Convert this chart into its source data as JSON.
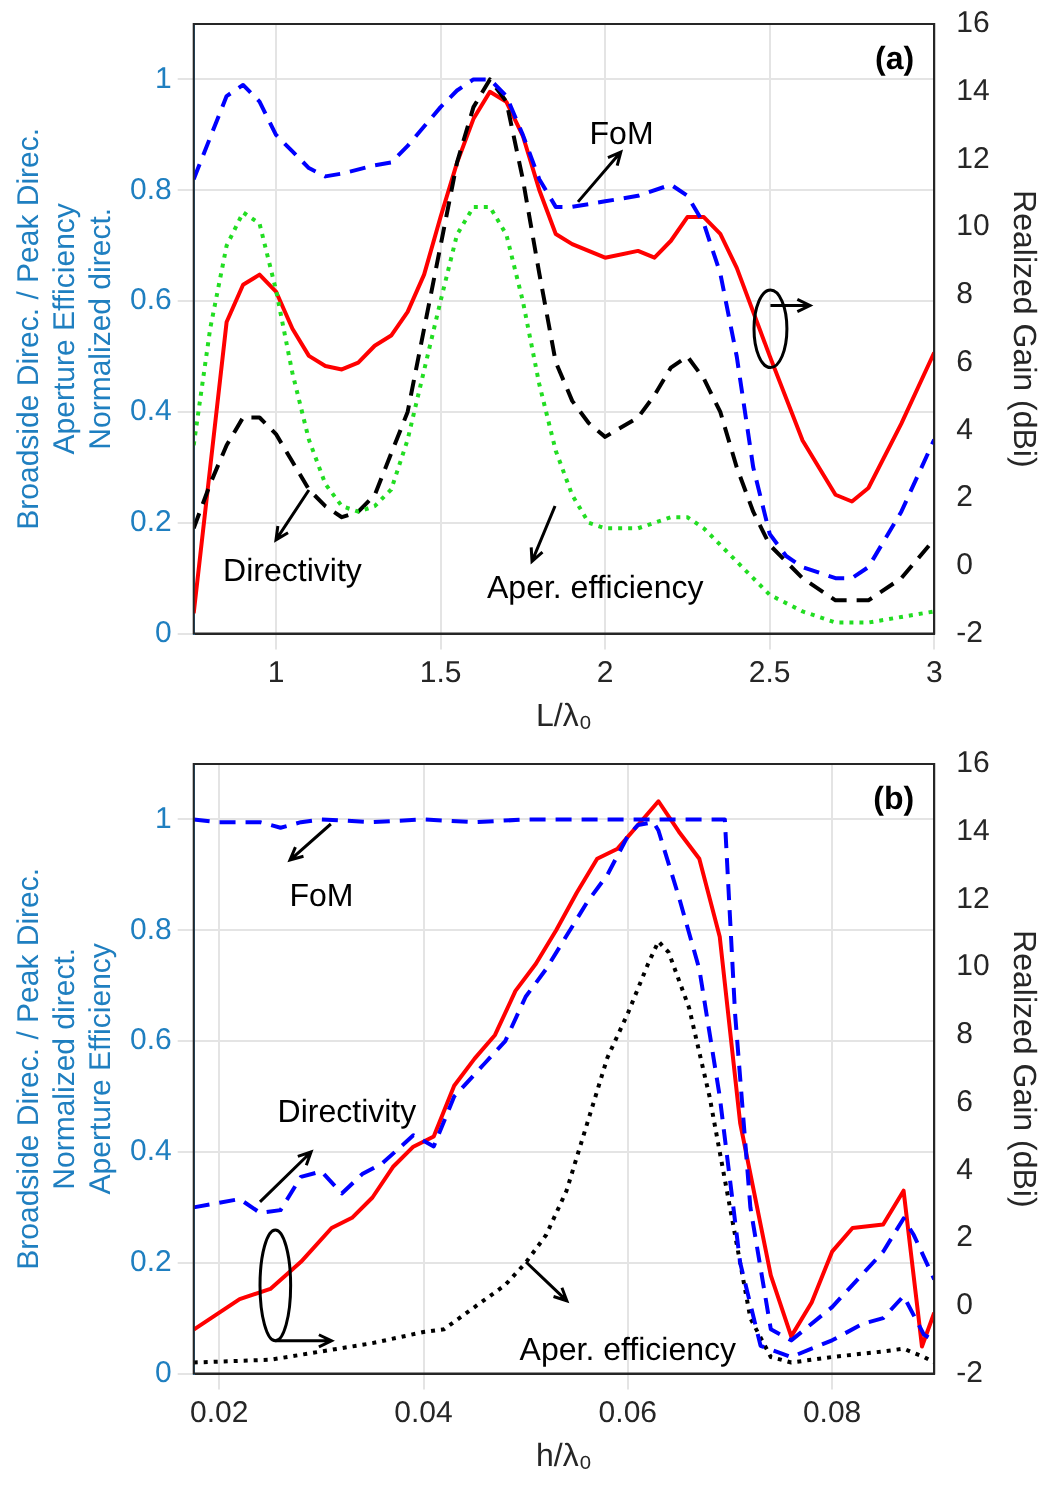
{
  "chart_data": [
    {
      "type": "line",
      "title": "(a)",
      "xlabel": "L/λ₀",
      "ylabel": "Broadside Direc. / Peak Direc.\nAperture Efficiency\nNormalized direct.",
      "y2label": "Realized Gain (dBi)",
      "xlim": [
        0.75,
        3
      ],
      "xticks": [
        1,
        1.5,
        2,
        2.5,
        3
      ],
      "ylim": [
        0,
        1.1
      ],
      "yticks": [
        0,
        0.2,
        0.4,
        0.6,
        0.8,
        1
      ],
      "y2lim": [
        -2,
        16
      ],
      "y2ticks": [
        -2,
        0,
        2,
        4,
        6,
        8,
        10,
        12,
        14,
        16
      ],
      "grid": true,
      "annotations": [
        "FoM",
        {
          "text": "Directivity",
          "x": 1.1,
          "y": 0.26
        },
        "Aper. efficiency"
      ],
      "series": [
        {
          "color": "#0000ff",
          "line_style": "dashed",
          "x": [
            0.75,
            0.85,
            0.9,
            0.95,
            1.0,
            1.05,
            1.1,
            1.15,
            1.2,
            1.3,
            1.35,
            1.4,
            1.5,
            1.55,
            1.6,
            1.65,
            1.7,
            1.75,
            1.8,
            1.85,
            1.9,
            2.0,
            2.1,
            2.2,
            2.25,
            2.3,
            2.35,
            2.4,
            2.45,
            2.5,
            2.55,
            2.6,
            2.7,
            2.75,
            2.8,
            2.9,
            3.0
          ],
          "values": [
            0.82,
            0.97,
            0.99,
            0.96,
            0.9,
            0.87,
            0.84,
            0.825,
            0.83,
            0.845,
            0.85,
            0.88,
            0.95,
            0.98,
            1.0,
            1.0,
            0.97,
            0.9,
            0.82,
            0.77,
            0.77,
            0.78,
            0.79,
            0.81,
            0.79,
            0.74,
            0.65,
            0.5,
            0.3,
            0.18,
            0.14,
            0.12,
            0.1,
            0.1,
            0.12,
            0.22,
            0.35
          ]
        },
        {
          "color": "#22dd22",
          "line_style": "dotted",
          "x": [
            0.75,
            0.8,
            0.85,
            0.9,
            0.95,
            1.0,
            1.05,
            1.1,
            1.15,
            1.2,
            1.25,
            1.3,
            1.35,
            1.4,
            1.5,
            1.55,
            1.6,
            1.65,
            1.7,
            1.75,
            1.8,
            1.85,
            1.9,
            1.95,
            2.0,
            2.1,
            2.2,
            2.25,
            2.3,
            2.4,
            2.5,
            2.6,
            2.7,
            2.8,
            2.9,
            3.0
          ],
          "values": [
            0.34,
            0.55,
            0.7,
            0.76,
            0.74,
            0.62,
            0.47,
            0.35,
            0.27,
            0.23,
            0.22,
            0.23,
            0.26,
            0.35,
            0.6,
            0.72,
            0.77,
            0.77,
            0.72,
            0.6,
            0.45,
            0.33,
            0.25,
            0.2,
            0.19,
            0.19,
            0.21,
            0.21,
            0.19,
            0.13,
            0.07,
            0.04,
            0.02,
            0.02,
            0.03,
            0.04
          ]
        },
        {
          "color": "#000000",
          "line_style": "dashed",
          "x": [
            0.75,
            0.8,
            0.85,
            0.9,
            0.95,
            1.0,
            1.05,
            1.1,
            1.15,
            1.2,
            1.25,
            1.3,
            1.4,
            1.5,
            1.55,
            1.6,
            1.65,
            1.7,
            1.75,
            1.8,
            1.85,
            1.9,
            1.95,
            2.0,
            2.1,
            2.15,
            2.2,
            2.25,
            2.3,
            2.35,
            2.4,
            2.45,
            2.5,
            2.6,
            2.7,
            2.8,
            2.9,
            3.0
          ],
          "values": [
            0.19,
            0.27,
            0.34,
            0.39,
            0.39,
            0.36,
            0.31,
            0.26,
            0.23,
            0.21,
            0.22,
            0.25,
            0.4,
            0.7,
            0.85,
            0.95,
            1.0,
            0.96,
            0.82,
            0.65,
            0.49,
            0.42,
            0.38,
            0.355,
            0.39,
            0.43,
            0.48,
            0.5,
            0.46,
            0.4,
            0.3,
            0.22,
            0.16,
            0.1,
            0.06,
            0.06,
            0.1,
            0.17
          ]
        },
        {
          "color": "#ff0000",
          "line_style": "solid",
          "axis": "y2",
          "x": [
            0.75,
            0.8,
            0.85,
            0.9,
            0.95,
            1.0,
            1.05,
            1.1,
            1.15,
            1.2,
            1.25,
            1.3,
            1.35,
            1.4,
            1.45,
            1.5,
            1.55,
            1.6,
            1.65,
            1.7,
            1.75,
            1.8,
            1.85,
            1.9,
            2.0,
            2.1,
            2.15,
            2.2,
            2.25,
            2.3,
            2.35,
            2.4,
            2.5,
            2.6,
            2.7,
            2.75,
            2.8,
            2.9,
            3.0
          ],
          "values": [
            -1.4,
            2.9,
            7.2,
            8.3,
            8.6,
            8.1,
            7.0,
            6.2,
            5.9,
            5.8,
            6.0,
            6.5,
            6.8,
            7.5,
            8.6,
            10.3,
            11.9,
            13.2,
            14.0,
            13.7,
            12.7,
            11.1,
            9.8,
            9.5,
            9.1,
            9.3,
            9.1,
            9.6,
            10.3,
            10.3,
            9.8,
            8.8,
            6.2,
            3.7,
            2.1,
            1.9,
            2.3,
            4.2,
            6.3
          ]
        }
      ]
    },
    {
      "type": "line",
      "title": "(b)",
      "xlabel": "h/λ₀",
      "ylabel": "Broadside Direc. / Peak Direc.\nNormalized direct.\nAperture Efficiency",
      "y2label": "Realized Gain (dBi)",
      "xlim": [
        0.0175,
        0.09
      ],
      "xticks": [
        0.02,
        0.04,
        0.06,
        0.08
      ],
      "ylim": [
        0,
        1.1
      ],
      "yticks": [
        0,
        0.2,
        0.4,
        0.6,
        0.8,
        1
      ],
      "y2lim": [
        -2,
        16
      ],
      "y2ticks": [
        -2,
        0,
        2,
        4,
        6,
        8,
        10,
        12,
        14,
        16
      ],
      "grid": true,
      "annotations": [
        "FoM",
        "Directivity",
        "Aper. efficiency"
      ],
      "series": [
        {
          "color": "#0000ff",
          "line_style": "dashed",
          "x": [
            0.0175,
            0.02,
            0.024,
            0.026,
            0.028,
            0.03,
            0.035,
            0.04,
            0.045,
            0.05,
            0.06,
            0.0695,
            0.0705,
            0.072,
            0.074,
            0.076,
            0.08,
            0.085,
            0.087,
            0.088,
            0.09
          ],
          "values": [
            1.0,
            0.995,
            0.995,
            0.985,
            0.995,
            1.0,
            0.995,
            1.0,
            0.995,
            1.0,
            1.0,
            1.0,
            0.65,
            0.3,
            0.08,
            0.06,
            0.12,
            0.22,
            0.28,
            0.25,
            0.17
          ]
        },
        {
          "color": "#0000ff",
          "line_style": "dashed",
          "x": [
            0.0175,
            0.022,
            0.024,
            0.026,
            0.028,
            0.03,
            0.032,
            0.034,
            0.036,
            0.039,
            0.04,
            0.041,
            0.043,
            0.046,
            0.048,
            0.05,
            0.052,
            0.054,
            0.056,
            0.058,
            0.06,
            0.061,
            0.0625,
            0.063,
            0.065,
            0.067,
            0.069,
            0.071,
            0.073,
            0.076,
            0.08,
            0.083,
            0.085,
            0.087,
            0.089,
            0.09
          ],
          "values": [
            0.3,
            0.315,
            0.29,
            0.295,
            0.355,
            0.365,
            0.325,
            0.36,
            0.38,
            0.43,
            0.42,
            0.41,
            0.5,
            0.56,
            0.6,
            0.68,
            0.73,
            0.79,
            0.85,
            0.9,
            0.97,
            0.99,
            0.995,
            0.98,
            0.86,
            0.73,
            0.5,
            0.2,
            0.05,
            0.03,
            0.06,
            0.09,
            0.1,
            0.14,
            0.07,
            0.06
          ]
        },
        {
          "color": "#000000",
          "line_style": "dotted",
          "x": [
            0.0175,
            0.025,
            0.03,
            0.035,
            0.04,
            0.042,
            0.045,
            0.048,
            0.05,
            0.052,
            0.054,
            0.056,
            0.058,
            0.06,
            0.062,
            0.063,
            0.064,
            0.066,
            0.068,
            0.07,
            0.072,
            0.074,
            0.076,
            0.08,
            0.085,
            0.087,
            0.089,
            0.09
          ],
          "values": [
            0.02,
            0.025,
            0.04,
            0.055,
            0.075,
            0.08,
            0.12,
            0.16,
            0.2,
            0.25,
            0.33,
            0.45,
            0.57,
            0.65,
            0.74,
            0.78,
            0.76,
            0.66,
            0.5,
            0.3,
            0.1,
            0.03,
            0.02,
            0.03,
            0.04,
            0.045,
            0.03,
            0.02
          ]
        },
        {
          "color": "#ff0000",
          "line_style": "solid",
          "axis": "y2",
          "x": [
            0.0175,
            0.022,
            0.025,
            0.028,
            0.031,
            0.033,
            0.035,
            0.037,
            0.039,
            0.041,
            0.043,
            0.045,
            0.047,
            0.049,
            0.051,
            0.053,
            0.055,
            0.057,
            0.059,
            0.061,
            0.063,
            0.065,
            0.067,
            0.069,
            0.071,
            0.074,
            0.076,
            0.078,
            0.08,
            0.082,
            0.085,
            0.087,
            0.0888,
            0.09
          ],
          "values": [
            -0.7,
            0.2,
            0.5,
            1.3,
            2.3,
            2.6,
            3.2,
            4.1,
            4.7,
            5.0,
            6.5,
            7.3,
            8.0,
            9.3,
            10.1,
            11.1,
            12.2,
            13.2,
            13.5,
            14.2,
            14.9,
            14.0,
            13.2,
            10.9,
            5.4,
            0.9,
            -0.9,
            0.1,
            1.6,
            2.3,
            2.4,
            3.4,
            -1.2,
            -0.2
          ]
        }
      ]
    }
  ]
}
